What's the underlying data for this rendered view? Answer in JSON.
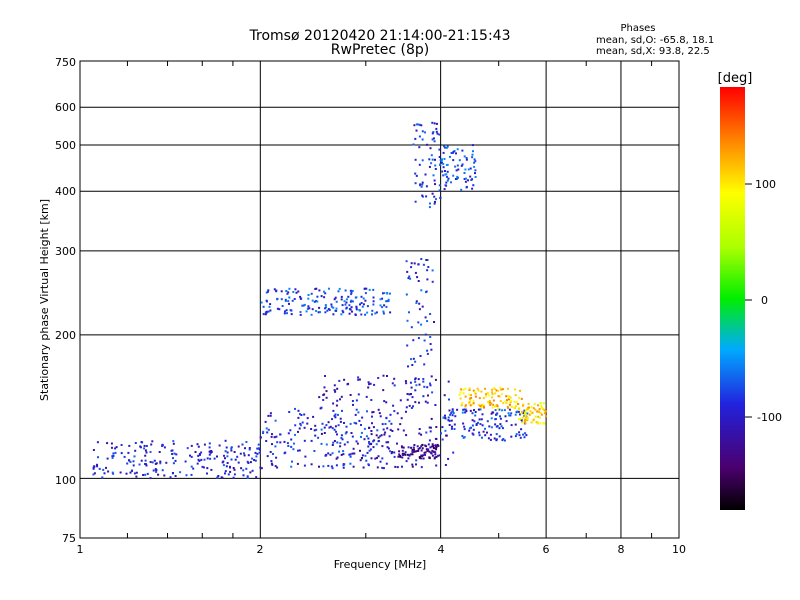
{
  "chart_data": {
    "type": "scatter",
    "title": "Tromsø 20120420 21:14:00-21:15:43",
    "subtitle": "RwPretec (8p)",
    "xlabel": "Frequency [MHz]",
    "ylabel": "Stationary phase Virtual Height [km]",
    "x_scale": "log",
    "y_scale": "log",
    "xlim": [
      1,
      10
    ],
    "ylim": [
      75,
      750
    ],
    "x_ticks": [
      "1",
      "2",
      "4",
      "6",
      "8",
      "10"
    ],
    "y_ticks": [
      "75",
      "100",
      "200",
      "300",
      "400",
      "500",
      "600",
      "750"
    ],
    "grid": true,
    "phases_box": {
      "heading": "Phases",
      "line_o": "mean, sd,O: -65.8, 18.1",
      "line_x": "mean, sd,X:  93.8, 22.5"
    },
    "colorbar": {
      "label": "[deg]",
      "range": [
        -180,
        180
      ],
      "ticks": [
        "100",
        "0",
        "-100"
      ],
      "colormap": "rainbow (black-purple-blue-cyan-green-yellow-red)"
    },
    "clusters": [
      {
        "freq": [
          1.05,
          2.0
        ],
        "height": [
          100,
          120
        ],
        "phase": -95
      },
      {
        "freq": [
          2.0,
          3.4
        ],
        "height": [
          105,
          140
        ],
        "phase": -90
      },
      {
        "freq": [
          2.5,
          4.2
        ],
        "height": [
          105,
          165
        ],
        "phase": -105
      },
      {
        "freq": [
          3.4,
          4.0
        ],
        "height": [
          110,
          118
        ],
        "phase": -130
      },
      {
        "freq": [
          3.5,
          3.9
        ],
        "height": [
          150,
          290
        ],
        "phase": -90
      },
      {
        "freq": [
          3.6,
          4.0
        ],
        "height": [
          370,
          560
        ],
        "phase": -90
      },
      {
        "freq": [
          4.0,
          5.6
        ],
        "height": [
          120,
          140
        ],
        "phase": -85
      },
      {
        "freq": [
          4.3,
          5.5
        ],
        "height": [
          140,
          155
        ],
        "phase": 110
      },
      {
        "freq": [
          4.0,
          4.6
        ],
        "height": [
          400,
          500
        ],
        "phase": -80
      },
      {
        "freq": [
          2.0,
          3.3
        ],
        "height": [
          220,
          250
        ],
        "phase": -80
      },
      {
        "freq": [
          5.4,
          6.0
        ],
        "height": [
          130,
          145
        ],
        "phase": 100
      }
    ]
  }
}
